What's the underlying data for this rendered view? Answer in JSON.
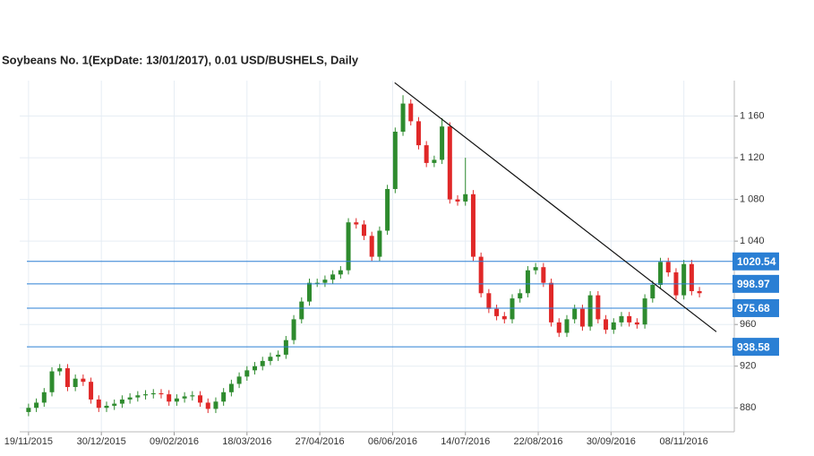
{
  "chart_data": {
    "type": "candlestick",
    "title": "Soybeans  No. 1(ExpDate: 13/01/2017), 0.01 USD/BUSHELS, Daily",
    "x": [
      0,
      3,
      6,
      9,
      12,
      15,
      18,
      21,
      24,
      27,
      30,
      33,
      36,
      39,
      42,
      45,
      48,
      51,
      54,
      57,
      60,
      63,
      66,
      69,
      72,
      75,
      78,
      81,
      84,
      87,
      90,
      93,
      96,
      99,
      102,
      105,
      108,
      111,
      114,
      117,
      120,
      123,
      126,
      129,
      132,
      135,
      138,
      141,
      144,
      147,
      150,
      153,
      156,
      159,
      162,
      165,
      168,
      171,
      174,
      177,
      180,
      183,
      186,
      189,
      192,
      195,
      198,
      201,
      204,
      207,
      210,
      213,
      216,
      219,
      222,
      225,
      228,
      231,
      234,
      237,
      240,
      243,
      246,
      249,
      252,
      255,
      258
    ],
    "open": [
      876,
      880,
      885,
      895,
      915,
      918,
      900,
      908,
      905,
      888,
      880,
      882,
      884,
      888,
      890,
      892,
      893,
      894,
      893,
      886,
      889,
      891,
      892,
      885,
      879,
      886,
      895,
      903,
      910,
      916,
      920,
      925,
      929,
      931,
      945,
      965,
      982,
      1000,
      1000,
      1003,
      1008,
      1012,
      1058,
      1056,
      1045,
      1025,
      1050,
      1090,
      1145,
      1172,
      1155,
      1132,
      1115,
      1118,
      1150,
      1080,
      1078,
      1085,
      1025,
      990,
      975,
      968,
      965,
      985,
      990,
      1012,
      1015,
      1000,
      962,
      952,
      965,
      975,
      958,
      988,
      965,
      955,
      962,
      968,
      962,
      960,
      985,
      998,
      1020,
      1010,
      988,
      1018,
      992
    ],
    "high": [
      884,
      889,
      899,
      919,
      922,
      922,
      912,
      912,
      909,
      892,
      886,
      888,
      892,
      894,
      896,
      897,
      898,
      898,
      897,
      893,
      895,
      896,
      896,
      889,
      890,
      899,
      907,
      914,
      920,
      924,
      929,
      933,
      935,
      949,
      969,
      986,
      1004,
      1004,
      1007,
      1012,
      1016,
      1062,
      1062,
      1060,
      1049,
      1054,
      1094,
      1149,
      1180,
      1176,
      1159,
      1136,
      1122,
      1158,
      1154,
      1084,
      1120,
      1089,
      1029,
      994,
      979,
      972,
      989,
      994,
      1016,
      1019,
      1019,
      1004,
      966,
      969,
      979,
      979,
      992,
      992,
      969,
      966,
      972,
      972,
      966,
      989,
      1002,
      1024,
      1024,
      1014,
      1022,
      1022,
      996
    ],
    "low": [
      872,
      876,
      881,
      891,
      911,
      896,
      896,
      901,
      884,
      876,
      876,
      878,
      880,
      884,
      886,
      888,
      889,
      889,
      882,
      882,
      885,
      887,
      881,
      875,
      875,
      882,
      891,
      899,
      906,
      912,
      916,
      921,
      925,
      927,
      941,
      961,
      978,
      996,
      996,
      999,
      1004,
      1008,
      1052,
      1041,
      1021,
      1021,
      1046,
      1086,
      1141,
      1151,
      1128,
      1111,
      1111,
      1114,
      1076,
      1074,
      1074,
      1021,
      986,
      971,
      964,
      961,
      961,
      981,
      986,
      1008,
      996,
      958,
      948,
      948,
      961,
      954,
      954,
      961,
      951,
      951,
      958,
      958,
      956,
      956,
      981,
      994,
      1006,
      984,
      984,
      988,
      986
    ],
    "close": [
      880,
      885,
      895,
      915,
      918,
      900,
      908,
      905,
      888,
      880,
      882,
      884,
      888,
      890,
      892,
      893,
      894,
      893,
      886,
      889,
      891,
      892,
      885,
      879,
      886,
      895,
      903,
      910,
      916,
      920,
      925,
      929,
      931,
      945,
      965,
      982,
      1000,
      1000,
      1003,
      1008,
      1012,
      1058,
      1056,
      1045,
      1025,
      1050,
      1090,
      1145,
      1172,
      1155,
      1132,
      1115,
      1118,
      1150,
      1080,
      1078,
      1085,
      1025,
      990,
      975,
      968,
      965,
      985,
      990,
      1012,
      1015,
      1000,
      962,
      952,
      965,
      975,
      958,
      988,
      965,
      955,
      962,
      968,
      962,
      960,
      985,
      998,
      1020,
      1010,
      988,
      1018,
      992,
      990
    ],
    "up_color": "#2e8b2e",
    "down_color": "#e02828",
    "xlim": [
      -3.4,
      271.4
    ],
    "xticks": [
      {
        "value": 0,
        "label": "19/11/2015"
      },
      {
        "value": 28,
        "label": "30/12/2015"
      },
      {
        "value": 56,
        "label": "09/02/2016"
      },
      {
        "value": 84,
        "label": "18/03/2016"
      },
      {
        "value": 112,
        "label": "27/04/2016"
      },
      {
        "value": 140,
        "label": "06/06/2016"
      },
      {
        "value": 168,
        "label": "14/07/2016"
      },
      {
        "value": 196,
        "label": "22/08/2016"
      },
      {
        "value": 224,
        "label": "30/09/2016"
      },
      {
        "value": 252,
        "label": "08/11/2016"
      }
    ],
    "ylim": [
      857,
      1194
    ],
    "yticks": [
      880,
      920,
      960,
      {
        "value": 1040,
        "label": "1 040"
      },
      {
        "value": 1080,
        "label": "1 080"
      },
      {
        "value": 1120,
        "label": "1 120"
      },
      {
        "value": 1160,
        "label": "1 160"
      }
    ],
    "grid": true,
    "levels": [
      1020.54,
      998.97,
      975.68,
      938.58
    ],
    "level_color": "#2a7fd4",
    "trendline": {
      "x": [
        140.8,
        264.5
      ],
      "y": [
        1192,
        953
      ]
    }
  }
}
